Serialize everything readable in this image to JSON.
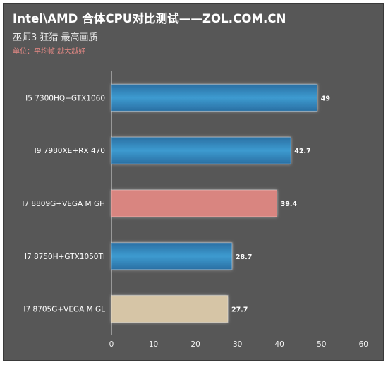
{
  "header": {
    "title": "Intel\\AMD 合体CPU对比测试——ZOL.COM.CN",
    "subtitle": "巫师3 狂猎 最高画质",
    "unit_note": "单位：平均帧  越大越好"
  },
  "chart_data": {
    "type": "bar",
    "orientation": "horizontal",
    "categories": [
      "I5 7300HQ+GTX1060",
      "I9 7980XE+RX 470",
      "I7 8809G+VEGA M GH",
      "I7 8750H+GTX1050TI",
      "I7 8705G+VEGA M GL"
    ],
    "values": [
      49,
      42.7,
      39.4,
      28.7,
      27.7
    ],
    "value_labels": [
      "49",
      "42.7",
      "39.4",
      "28.7",
      "27.7"
    ],
    "bar_colors": [
      "#3a8ec2",
      "#3a8ec2",
      "#d98580",
      "#3a8ec2",
      "#d6c5a6"
    ],
    "xlim": [
      0,
      60
    ],
    "x_ticks": [
      0,
      10,
      20,
      30,
      40,
      50,
      60
    ],
    "grid": false,
    "legend": "none"
  },
  "colors": {
    "background": "#575757",
    "blue_bar": "#3a8ec2",
    "pink_bar": "#d98580",
    "beige_bar": "#d6c5a6"
  }
}
